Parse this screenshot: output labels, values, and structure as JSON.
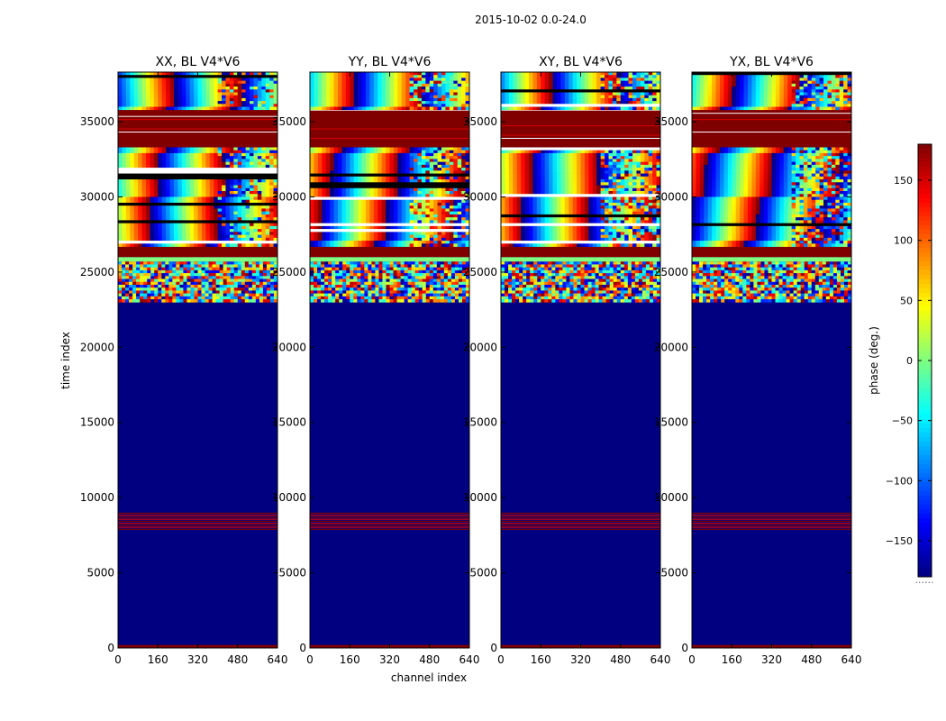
{
  "chart_data": {
    "type": "heatmap",
    "suptitle": "2015-10-02 0.0-24.0",
    "xlabel": "channel index",
    "ylabel": "time index",
    "xlim": [
      0,
      640
    ],
    "ylim": [
      0,
      38300
    ],
    "x_ticks": [
      "0",
      "160",
      "320",
      "480",
      "640"
    ],
    "x_tick_values": [
      0,
      160,
      320,
      480,
      640
    ],
    "y_ticks": [
      "0",
      "5000",
      "10000",
      "15000",
      "20000",
      "25000",
      "30000",
      "35000"
    ],
    "y_tick_values": [
      0,
      5000,
      10000,
      15000,
      20000,
      25000,
      30000,
      35000
    ],
    "panels": [
      {
        "name": "XX",
        "title": "XX, BL V4*V6",
        "wrap_center": 300,
        "wrap_slope": 0.9,
        "noise": 0.35
      },
      {
        "name": "YY",
        "title": "YY, BL V4*V6",
        "wrap_center": 220,
        "wrap_slope": 1.3,
        "noise": 0.45
      },
      {
        "name": "XY",
        "title": "XY, BL V4*V6",
        "wrap_center": 260,
        "wrap_slope": 1.1,
        "noise": 0.55
      },
      {
        "name": "YX",
        "title": "YX, BL V4*V6",
        "wrap_center": 180,
        "wrap_slope": 1.6,
        "noise": 0.55
      }
    ],
    "blank_value_deg": -180,
    "time_bands": [
      {
        "kind": "edge",
        "start": 0,
        "end": 200,
        "value": 180
      },
      {
        "kind": "blank",
        "start": 200,
        "end": 7800
      },
      {
        "kind": "stripes",
        "start": 7800,
        "end": 9000,
        "value": 180
      },
      {
        "kind": "blank",
        "start": 9000,
        "end": 23000
      },
      {
        "kind": "noisy",
        "start": 23000,
        "end": 25700
      },
      {
        "kind": "gap",
        "start": 25700,
        "end": 26000,
        "value": 0
      },
      {
        "kind": "band",
        "start": 26000,
        "end": 26700,
        "value": 180
      },
      {
        "kind": "fringes",
        "start": 26700,
        "end": 33300
      },
      {
        "kind": "block",
        "start": 33300,
        "end": 35800,
        "value": 180
      },
      {
        "kind": "fringes",
        "start": 35800,
        "end": 38300
      }
    ],
    "colorbar": {
      "label": "phase (deg.)",
      "range": [
        -180,
        180
      ],
      "ticks": [
        "150",
        "100",
        "50",
        "0",
        "−50",
        "−100",
        "−150"
      ],
      "tick_values": [
        150,
        100,
        50,
        0,
        -50,
        -100,
        -150
      ],
      "colormap": "jet",
      "under_mark": "......"
    }
  }
}
